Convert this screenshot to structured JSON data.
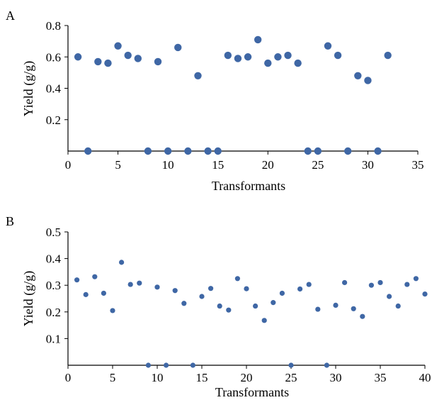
{
  "colors": {
    "marker": "#3f67a5",
    "axis": "#000000"
  },
  "chart_data": [
    {
      "panel_label": "A",
      "type": "scatter",
      "xlabel": "Transformants",
      "ylabel": "Yield (g/g)",
      "xlim": [
        0,
        35
      ],
      "ylim": [
        0,
        0.8
      ],
      "xticks": [
        0,
        5,
        10,
        15,
        20,
        25,
        30,
        35
      ],
      "yticks": [
        0.2,
        0.4,
        0.6,
        0.8
      ],
      "ytick_labels": [
        "0.2",
        "0.4",
        "0.6",
        "0.8"
      ],
      "x": [
        1,
        2,
        3,
        4,
        5,
        6,
        7,
        8,
        9,
        10,
        11,
        12,
        13,
        14,
        15,
        16,
        17,
        18,
        19,
        20,
        21,
        22,
        23,
        24,
        25,
        26,
        27,
        28,
        29,
        30,
        31,
        32
      ],
      "y": [
        0.6,
        0,
        0.57,
        0.56,
        0.67,
        0.61,
        0.59,
        0,
        0.57,
        0,
        0.66,
        0,
        0.48,
        0,
        0,
        0.61,
        0.59,
        0.6,
        0.71,
        0.56,
        0.6,
        0.61,
        0.56,
        0,
        0,
        0.67,
        0.61,
        0,
        0.48,
        0.45,
        0,
        0.61
      ],
      "marker": "circle-large"
    },
    {
      "panel_label": "B",
      "type": "scatter",
      "xlabel": "Transformants",
      "ylabel": "Yield (g/g)",
      "xlim": [
        0,
        40
      ],
      "ylim": [
        0,
        0.5
      ],
      "xticks": [
        0,
        5,
        10,
        15,
        20,
        25,
        30,
        35,
        40
      ],
      "yticks": [
        0.1,
        0.2,
        0.3,
        0.4,
        0.5
      ],
      "ytick_labels": [
        "0.1",
        "0.2",
        "0.3",
        "0.4",
        "0.5"
      ],
      "x": [
        1,
        2,
        3,
        4,
        5,
        6,
        7,
        8,
        9,
        10,
        11,
        12,
        13,
        14,
        15,
        16,
        17,
        18,
        19,
        20,
        21,
        22,
        23,
        24,
        25,
        26,
        27,
        28,
        29,
        30,
        31,
        32,
        33,
        34,
        35,
        36,
        37,
        38,
        39,
        40
      ],
      "y": [
        0.32,
        0.265,
        0.332,
        0.27,
        0.205,
        0.386,
        0.303,
        0.308,
        0,
        0.293,
        0,
        0.28,
        0.232,
        0,
        0.258,
        0.288,
        0.222,
        0.207,
        0.325,
        0.287,
        0.222,
        0.168,
        0.235,
        0.27,
        0,
        0.286,
        0.303,
        0.21,
        0,
        0.225,
        0.31,
        0.212,
        0.183,
        0.3,
        0.31,
        0.258,
        0.222,
        0.303,
        0.325,
        0.267
      ],
      "marker": "circle-small"
    }
  ]
}
